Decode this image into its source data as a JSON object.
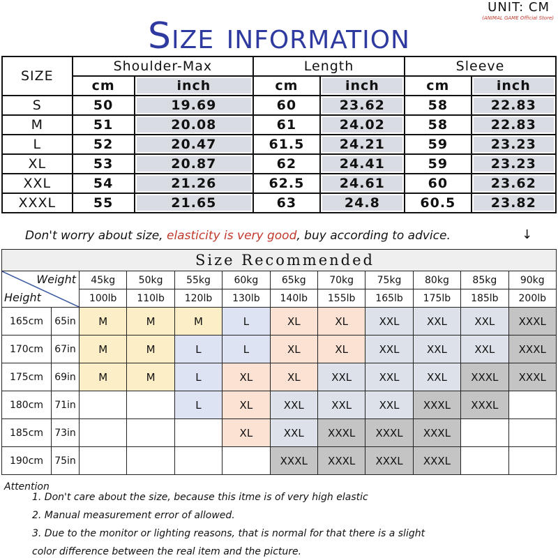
{
  "header": {
    "unit": "UNIT: CM",
    "store": "(ANIMAL GAME Official Store)",
    "title": "Size information"
  },
  "size_table": {
    "size_label": "SIZE",
    "groups": [
      "Shoulder-Max",
      "Length",
      "Sleeve"
    ],
    "units": [
      "cm",
      "inch"
    ],
    "rows": [
      [
        "S",
        "50",
        "19.69",
        "60",
        "23.62",
        "58",
        "22.83"
      ],
      [
        "M",
        "51",
        "20.08",
        "61",
        "24.02",
        "58",
        "22.83"
      ],
      [
        "L",
        "52",
        "20.47",
        "61.5",
        "24.21",
        "59",
        "23.23"
      ],
      [
        "XL",
        "53",
        "20.87",
        "62",
        "24.41",
        "59",
        "23.23"
      ],
      [
        "XXL",
        "54",
        "21.26",
        "62.5",
        "24.61",
        "60",
        "23.62"
      ],
      [
        "XXXL",
        "55",
        "21.65",
        "63",
        "24.8",
        "60.5",
        "23.82"
      ]
    ]
  },
  "advice": {
    "before": "Don't worry about size, ",
    "highlight": "elasticity is very good",
    "after": ", buy according to advice.",
    "arrow": "↓"
  },
  "recommend_table": {
    "title": "Size Recommended",
    "weight_label": "Weight",
    "height_label": "Height",
    "weights_kg": [
      "45kg",
      "50kg",
      "55kg",
      "60kg",
      "65kg",
      "70kg",
      "75kg",
      "80kg",
      "85kg",
      "90kg"
    ],
    "weights_lb": [
      "100lb",
      "110lb",
      "120lb",
      "130lb",
      "140lb",
      "155lb",
      "165lb",
      "175lb",
      "185lb",
      "200lb"
    ],
    "rows": [
      {
        "cm": "165cm",
        "in": "65in",
        "sizes": [
          "M",
          "M",
          "M",
          "L",
          "XL",
          "XL",
          "XXL",
          "XXL",
          "XXL",
          "XXXL"
        ]
      },
      {
        "cm": "170cm",
        "in": "67in",
        "sizes": [
          "M",
          "M",
          "L",
          "L",
          "XL",
          "XL",
          "XXL",
          "XXL",
          "XXL",
          "XXXL"
        ]
      },
      {
        "cm": "175cm",
        "in": "69in",
        "sizes": [
          "M",
          "M",
          "L",
          "XL",
          "XL",
          "XXL",
          "XXL",
          "XXL",
          "XXXL",
          "XXXL"
        ]
      },
      {
        "cm": "180cm",
        "in": "71in",
        "sizes": [
          "",
          "",
          "L",
          "XL",
          "XXL",
          "XXL",
          "XXL",
          "XXXL",
          "XXXL",
          ""
        ]
      },
      {
        "cm": "185cm",
        "in": "73in",
        "sizes": [
          "",
          "",
          "",
          "XL",
          "XXL",
          "XXXL",
          "XXXL",
          "XXXL",
          "",
          ""
        ]
      },
      {
        "cm": "190cm",
        "in": "75in",
        "sizes": [
          "",
          "",
          "",
          "",
          "XXXL",
          "XXXL",
          "XXXL",
          "XXXL",
          "",
          ""
        ]
      }
    ],
    "colors": {
      "M": "#fcefc8",
      "L": "#dde3f3",
      "XL": "#fbe2d3",
      "XXL": "#dde2ea",
      "XXXL": "#c4c4c4"
    }
  },
  "attention": {
    "label": "Attention",
    "notes": [
      "1. Don't care about the size, because this itme is of very high elastic",
      "2. Manual measurement error of allowed.",
      "3.  Due to the monitor or lighting reasons, that is normal for that there is a slight",
      "color difference between the real item and the picture."
    ]
  }
}
